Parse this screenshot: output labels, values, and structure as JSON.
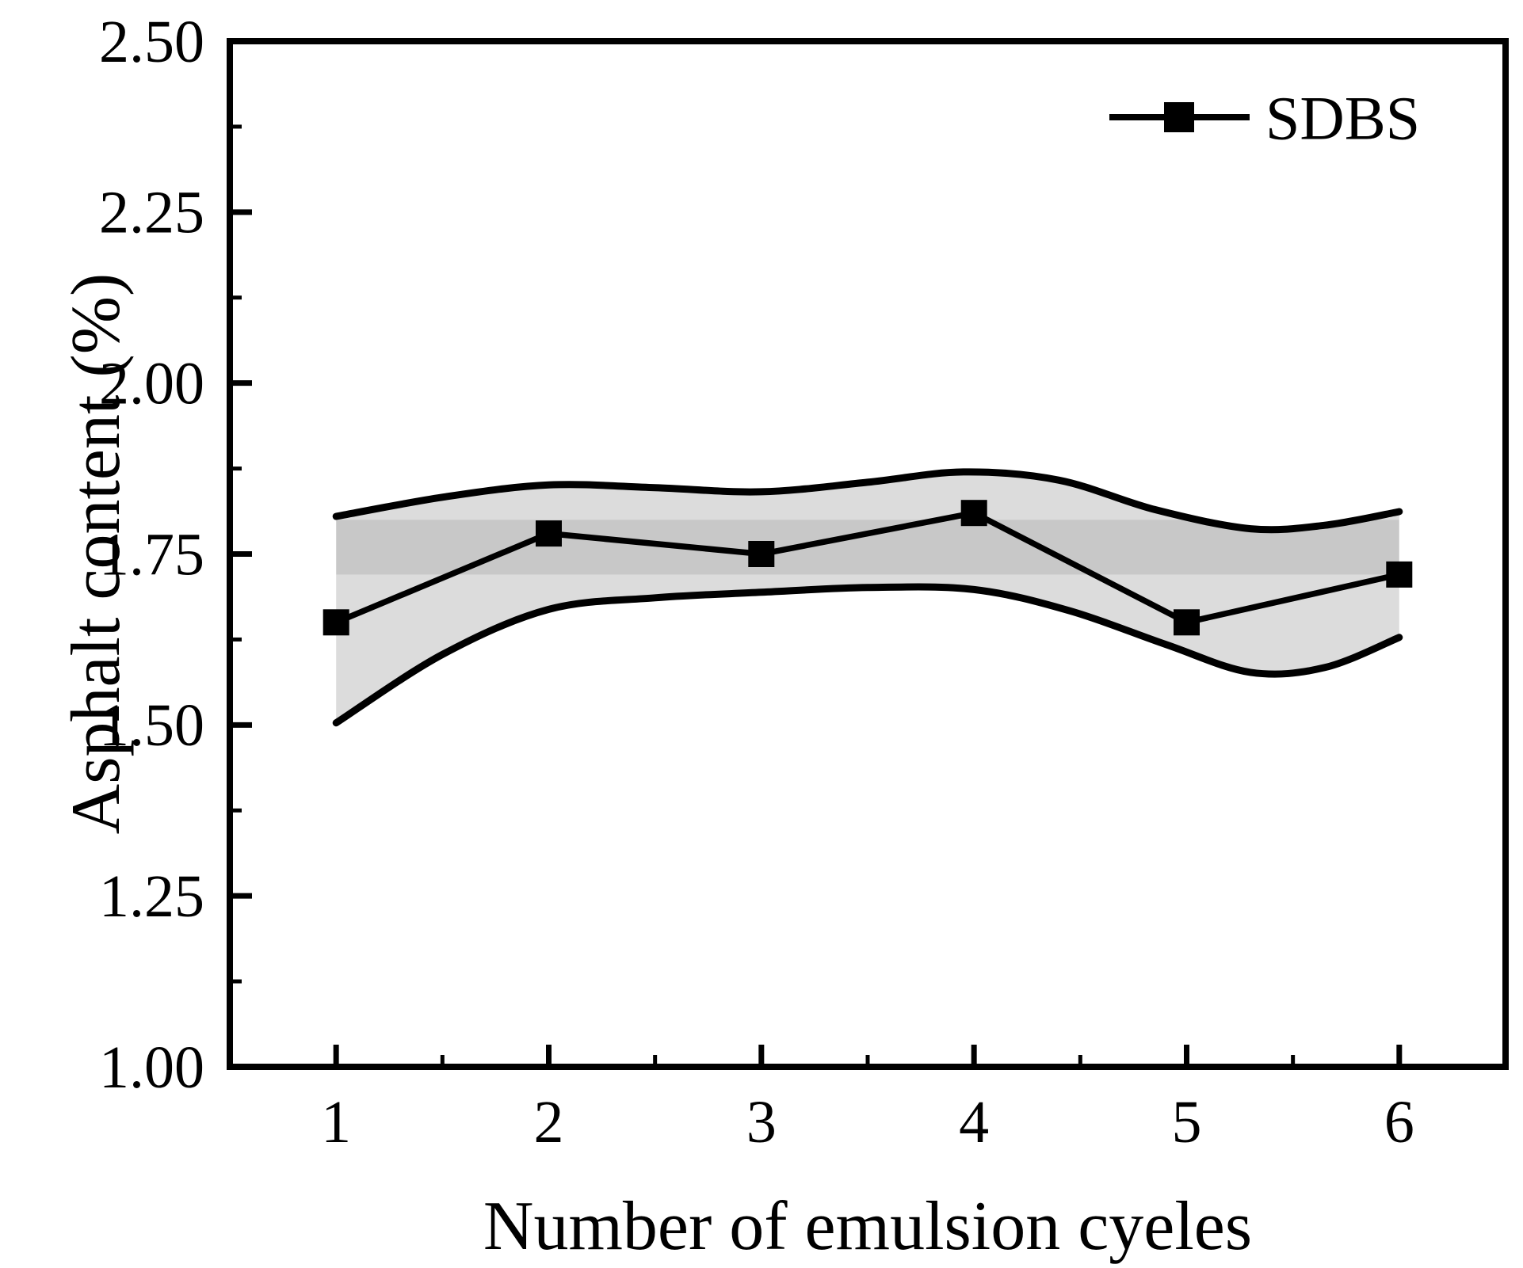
{
  "figure": {
    "background": "#ffffff",
    "frame_color": "#000000",
    "line_color": "#000000",
    "band_fill": "#dcdcdc",
    "band_overlap_fill": "#c8c8c8"
  },
  "legend": {
    "label": "SDBS",
    "marker": "filled-square"
  },
  "axes": {
    "x": {
      "title": "Number of emulsion cyeles",
      "range": [
        0.5,
        6.5
      ],
      "major_tick_values": [
        1,
        2,
        3,
        4,
        5,
        6
      ],
      "major_tick_labels": [
        "1",
        "2",
        "3",
        "4",
        "5",
        "6"
      ],
      "minor_tick_values": [
        1.5,
        2.5,
        3.5,
        4.5,
        5.5
      ]
    },
    "y": {
      "title": "Asphalt content (%)",
      "range": [
        1.0,
        2.5
      ],
      "major_tick_values": [
        1.0,
        1.25,
        1.5,
        1.75,
        2.0,
        2.25,
        2.5
      ],
      "major_tick_labels": [
        "1.00",
        "1.25",
        "1.50",
        "1.75",
        "2.00",
        "2.25",
        "2.50"
      ],
      "minor_tick_values": [
        1.125,
        1.375,
        1.625,
        1.875,
        2.125,
        2.375
      ]
    }
  },
  "chart_data": {
    "type": "line",
    "title": "",
    "xlabel": "Number of emulsion cyeles",
    "ylabel": "Asphalt content (%)",
    "xlim": [
      0.5,
      6.5
    ],
    "ylim": [
      1.0,
      2.5
    ],
    "grid": false,
    "legend_position": "top-right",
    "x": [
      1,
      2,
      3,
      4,
      5,
      6
    ],
    "series": [
      {
        "name": "SDBS",
        "values": [
          1.65,
          1.78,
          1.75,
          1.81,
          1.65,
          1.72
        ],
        "color": "#000000",
        "marker": "filled-square"
      }
    ],
    "band": {
      "upper": [
        [
          1,
          1.805
        ],
        [
          1.5,
          1.833
        ],
        [
          2,
          1.851
        ],
        [
          2.5,
          1.847
        ],
        [
          3,
          1.841
        ],
        [
          3.5,
          1.855
        ],
        [
          3.95,
          1.87
        ],
        [
          4.4,
          1.858
        ],
        [
          4.85,
          1.815
        ],
        [
          5.3,
          1.787
        ],
        [
          5.65,
          1.792
        ],
        [
          6,
          1.812
        ]
      ],
      "lower": [
        [
          1,
          1.503
        ],
        [
          1.5,
          1.603
        ],
        [
          2,
          1.669
        ],
        [
          2.5,
          1.686
        ],
        [
          3,
          1.694
        ],
        [
          3.5,
          1.701
        ],
        [
          4,
          1.698
        ],
        [
          4.45,
          1.667
        ],
        [
          4.9,
          1.618
        ],
        [
          5.3,
          1.577
        ],
        [
          5.65,
          1.584
        ],
        [
          6,
          1.628
        ]
      ],
      "overlap_strip": {
        "y_top": 1.8,
        "y_bottom": 1.72
      }
    }
  }
}
